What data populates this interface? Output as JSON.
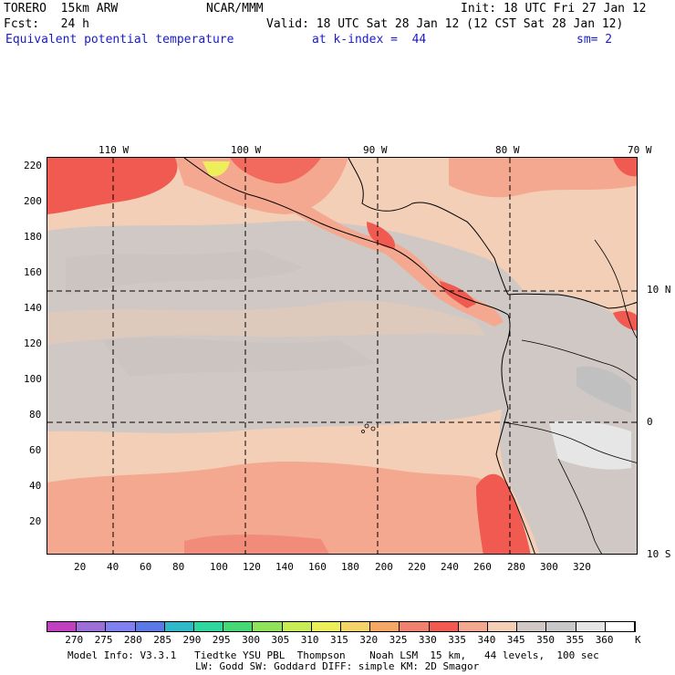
{
  "header": {
    "model_name": "TORERO  15km ARW",
    "center": "NCAR/MMM",
    "init": "Init: 18 UTC Fri 27 Jan 12",
    "fcst": "Fcst:   24 h",
    "valid": "Valid: 18 UTC Sat 28 Jan 12 (12 CST Sat 28 Jan 12)",
    "field": "Equivalent potential temperature",
    "level": "at k-index =  44",
    "smoothing": "sm= 2"
  },
  "map": {
    "top_lon_labels": [
      "110 W",
      "100 W",
      "90 W",
      "80 W",
      "70 W"
    ],
    "right_lat_labels": [
      "10 N",
      "0",
      "10 S"
    ],
    "left_y_ticks": [
      "220",
      "200",
      "180",
      "160",
      "140",
      "120",
      "100",
      "80",
      "60",
      "40",
      "20"
    ],
    "bottom_x_ticks": [
      "20",
      "40",
      "60",
      "80",
      "100",
      "120",
      "140",
      "160",
      "180",
      "200",
      "220",
      "240",
      "260",
      "280",
      "300",
      "320"
    ]
  },
  "colorbar": {
    "labels": [
      "270",
      "275",
      "280",
      "285",
      "290",
      "295",
      "300",
      "305",
      "310",
      "315",
      "320",
      "325",
      "330",
      "335",
      "340",
      "345",
      "350",
      "355",
      "360"
    ],
    "unit": "K",
    "colors": [
      "#c040c0",
      "#9c6fd6",
      "#8080f0",
      "#5a78e6",
      "#2fb8c8",
      "#2ed6a0",
      "#45d875",
      "#8fe25a",
      "#c8ec55",
      "#ecef5a",
      "#f4d468",
      "#f4a864",
      "#f08070",
      "#f05a50",
      "#f4a890",
      "#f2cfb6",
      "#d0c8c4",
      "#c8c8c8",
      "#e6e6e6",
      "#ffffff"
    ]
  },
  "footer": {
    "line1": "Model Info: V3.3.1   Tiedtke YSU PBL  Thompson    Noah LSM  15 km,   44 levels,  100 sec",
    "line2": "LW: Godd SW: Goddard DIFF: simple KM: 2D Smagor"
  }
}
